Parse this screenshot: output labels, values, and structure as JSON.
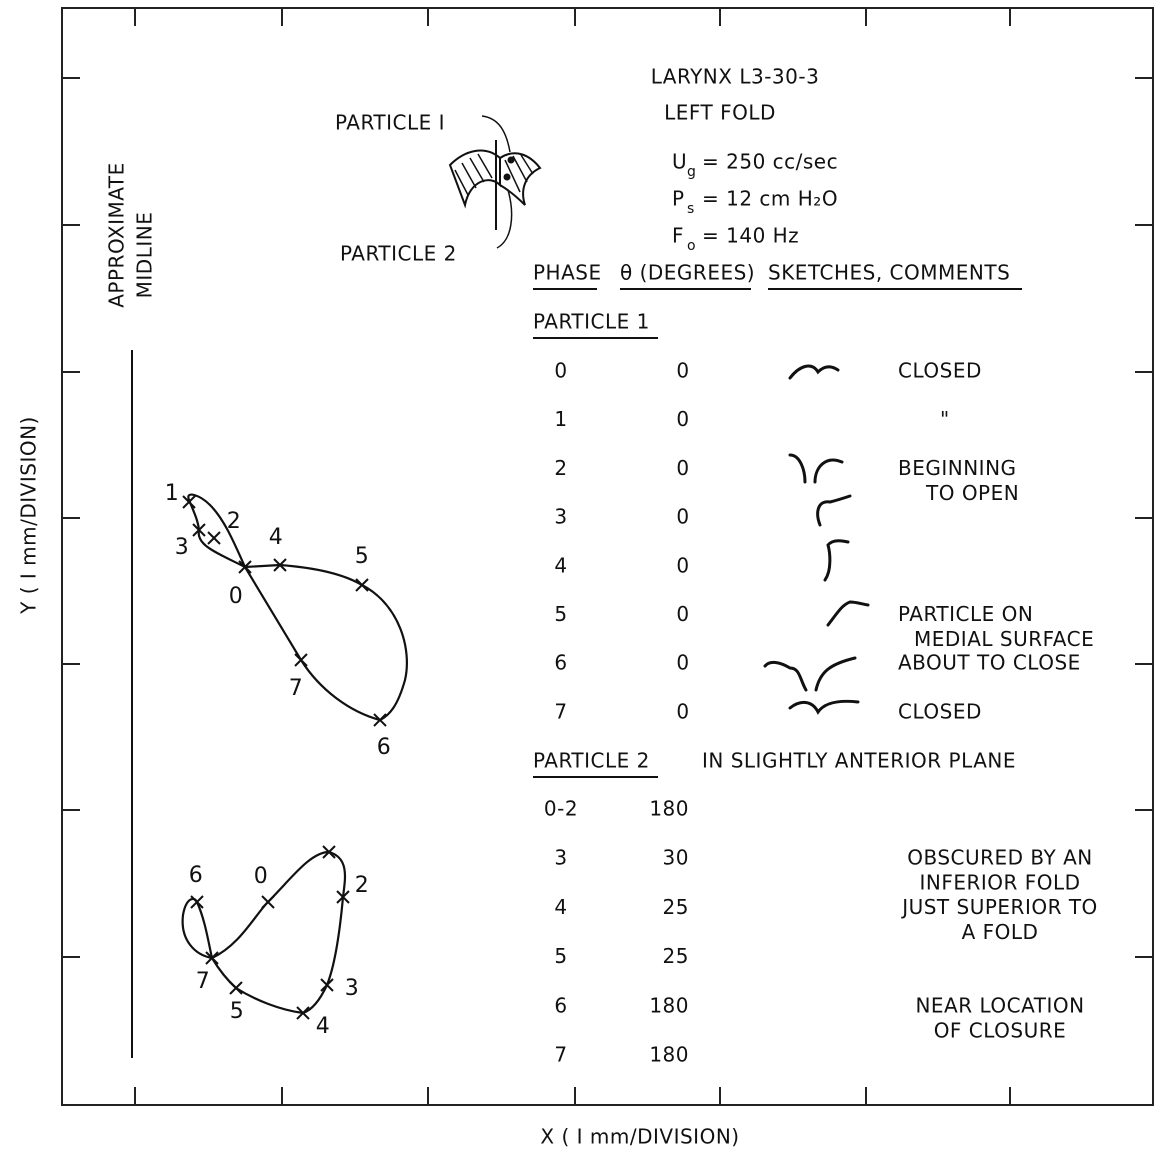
{
  "axes": {
    "x_label": "X ( I mm/DIVISION)",
    "y_label": "Y ( I mm/DIVISION)"
  },
  "midline": [
    "APPROXIMATE",
    "MIDLINE"
  ],
  "header": {
    "title": "LARYNX  L3-30-3",
    "subtitle": "LEFT FOLD",
    "params": [
      {
        "symbol": "U",
        "sub": "g",
        "rest": "= 250 cc/sec"
      },
      {
        "symbol": "P",
        "sub": "s",
        "rest": "=  12 cm H₂O"
      },
      {
        "symbol": "F",
        "sub": "o",
        "rest": "= 140 Hz"
      }
    ]
  },
  "inset": {
    "particle1": "PARTICLE I",
    "particle2": "PARTICLE 2"
  },
  "columns": [
    "PHASE",
    "θ (DEGREES)",
    "SKETCHES, COMMENTS"
  ],
  "particle1": {
    "heading": "PARTICLE 1",
    "rows": [
      {
        "phase": "0",
        "theta": "0",
        "comment": [
          "CLOSED"
        ]
      },
      {
        "phase": "1",
        "theta": "0",
        "comment": [
          "\""
        ]
      },
      {
        "phase": "2",
        "theta": "0",
        "comment": [
          "BEGINNING",
          "TO OPEN"
        ]
      },
      {
        "phase": "3",
        "theta": "0"
      },
      {
        "phase": "4",
        "theta": "0"
      },
      {
        "phase": "5",
        "theta": "0",
        "comment": [
          "PARTICLE ON",
          "MEDIAL SURFACE"
        ]
      },
      {
        "phase": "6",
        "theta": "0",
        "comment": [
          "ABOUT TO CLOSE"
        ]
      },
      {
        "phase": "7",
        "theta": "0",
        "comment": [
          "CLOSED"
        ]
      }
    ]
  },
  "particle2": {
    "heading": "PARTICLE 2",
    "note": "IN SLIGHTLY ANTERIOR PLANE",
    "rows": [
      {
        "phase": "0-2",
        "theta": "180"
      },
      {
        "phase": "3",
        "theta": "30",
        "comment": [
          "OBSCURED BY AN",
          "INFERIOR FOLD"
        ]
      },
      {
        "phase": "4",
        "theta": "25",
        "comment": [
          "JUST SUPERIOR TO",
          "A FOLD"
        ]
      },
      {
        "phase": "5",
        "theta": "25"
      },
      {
        "phase": "6",
        "theta": "180",
        "comment": [
          "NEAR LOCATION",
          "OF CLOSURE"
        ]
      },
      {
        "phase": "7",
        "theta": "180"
      }
    ]
  },
  "trajectory1_labels": [
    "0",
    "1",
    "2",
    "3",
    "4",
    "5",
    "6",
    "7"
  ],
  "trajectory2_labels": [
    "0",
    "2",
    "3",
    "4",
    "5",
    "6",
    "7"
  ]
}
